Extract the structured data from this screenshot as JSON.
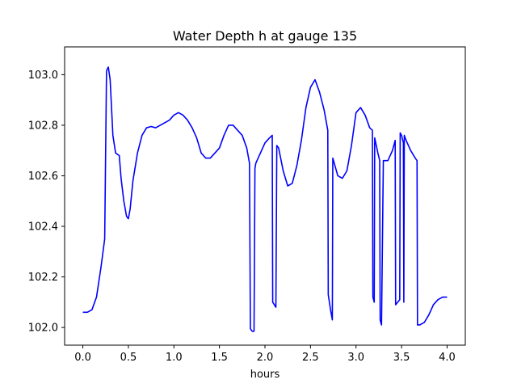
{
  "chart_data": {
    "type": "line",
    "title": "Water Depth h at gauge 135",
    "xlabel": "hours",
    "ylabel": "",
    "xlim": [
      -0.2,
      4.2
    ],
    "ylim": [
      101.93,
      103.11
    ],
    "xticks": [
      0.0,
      0.5,
      1.0,
      1.5,
      2.0,
      2.5,
      3.0,
      3.5,
      4.0
    ],
    "xtick_labels": [
      "0.0",
      "0.5",
      "1.0",
      "1.5",
      "2.0",
      "2.5",
      "3.0",
      "3.5",
      "4.0"
    ],
    "yticks": [
      102.0,
      102.2,
      102.4,
      102.6,
      102.8,
      103.0
    ],
    "ytick_labels": [
      "102.0",
      "102.2",
      "102.4",
      "102.6",
      "102.8",
      "103.0"
    ],
    "grid": false,
    "legend": "none",
    "series": [
      {
        "color": "#0000ff",
        "x": [
          0.0,
          0.05,
          0.1,
          0.15,
          0.2,
          0.24,
          0.26,
          0.265,
          0.28,
          0.3,
          0.33,
          0.36,
          0.4,
          0.42,
          0.45,
          0.48,
          0.5,
          0.52,
          0.55,
          0.6,
          0.65,
          0.7,
          0.75,
          0.8,
          0.85,
          0.9,
          0.95,
          1.0,
          1.05,
          1.1,
          1.15,
          1.2,
          1.25,
          1.3,
          1.35,
          1.4,
          1.45,
          1.5,
          1.55,
          1.6,
          1.65,
          1.7,
          1.75,
          1.8,
          1.83,
          1.84,
          1.86,
          1.88,
          1.89,
          1.9,
          1.95,
          2.0,
          2.05,
          2.08,
          2.085,
          2.12,
          2.13,
          2.15,
          2.2,
          2.25,
          2.3,
          2.35,
          2.4,
          2.45,
          2.5,
          2.55,
          2.6,
          2.65,
          2.69,
          2.695,
          2.72,
          2.74,
          2.745,
          2.8,
          2.85,
          2.9,
          2.95,
          3.0,
          3.05,
          3.1,
          3.15,
          3.18,
          3.185,
          3.2,
          3.205,
          3.24,
          3.26,
          3.265,
          3.28,
          3.3,
          3.35,
          3.4,
          3.43,
          3.435,
          3.48,
          3.485,
          3.5,
          3.52,
          3.525,
          3.53,
          3.55,
          3.6,
          3.65,
          3.67,
          3.675,
          3.7,
          3.75,
          3.8,
          3.85,
          3.9,
          3.95,
          4.0
        ],
        "y": [
          102.06,
          102.06,
          102.07,
          102.12,
          102.24,
          102.35,
          103.01,
          103.02,
          103.03,
          102.98,
          102.76,
          102.69,
          102.68,
          102.59,
          102.5,
          102.44,
          102.43,
          102.47,
          102.58,
          102.69,
          102.76,
          102.79,
          102.795,
          102.79,
          102.8,
          102.81,
          102.82,
          102.84,
          102.85,
          102.84,
          102.82,
          102.79,
          102.75,
          102.69,
          102.67,
          102.67,
          102.69,
          102.71,
          102.76,
          102.8,
          102.8,
          102.78,
          102.76,
          102.71,
          102.65,
          101.995,
          101.985,
          101.985,
          102.63,
          102.65,
          102.69,
          102.73,
          102.75,
          102.76,
          102.1,
          102.08,
          102.72,
          102.71,
          102.62,
          102.56,
          102.57,
          102.64,
          102.74,
          102.87,
          102.95,
          102.98,
          102.93,
          102.86,
          102.78,
          102.13,
          102.07,
          102.03,
          102.67,
          102.6,
          102.59,
          102.62,
          102.72,
          102.85,
          102.87,
          102.84,
          102.79,
          102.78,
          102.12,
          102.1,
          102.75,
          102.69,
          102.66,
          102.03,
          102.01,
          102.66,
          102.66,
          102.7,
          102.74,
          102.09,
          102.11,
          102.77,
          102.76,
          102.73,
          102.1,
          102.76,
          102.74,
          102.7,
          102.67,
          102.66,
          102.01,
          102.01,
          102.02,
          102.05,
          102.09,
          102.11,
          102.12,
          102.12
        ]
      }
    ]
  }
}
